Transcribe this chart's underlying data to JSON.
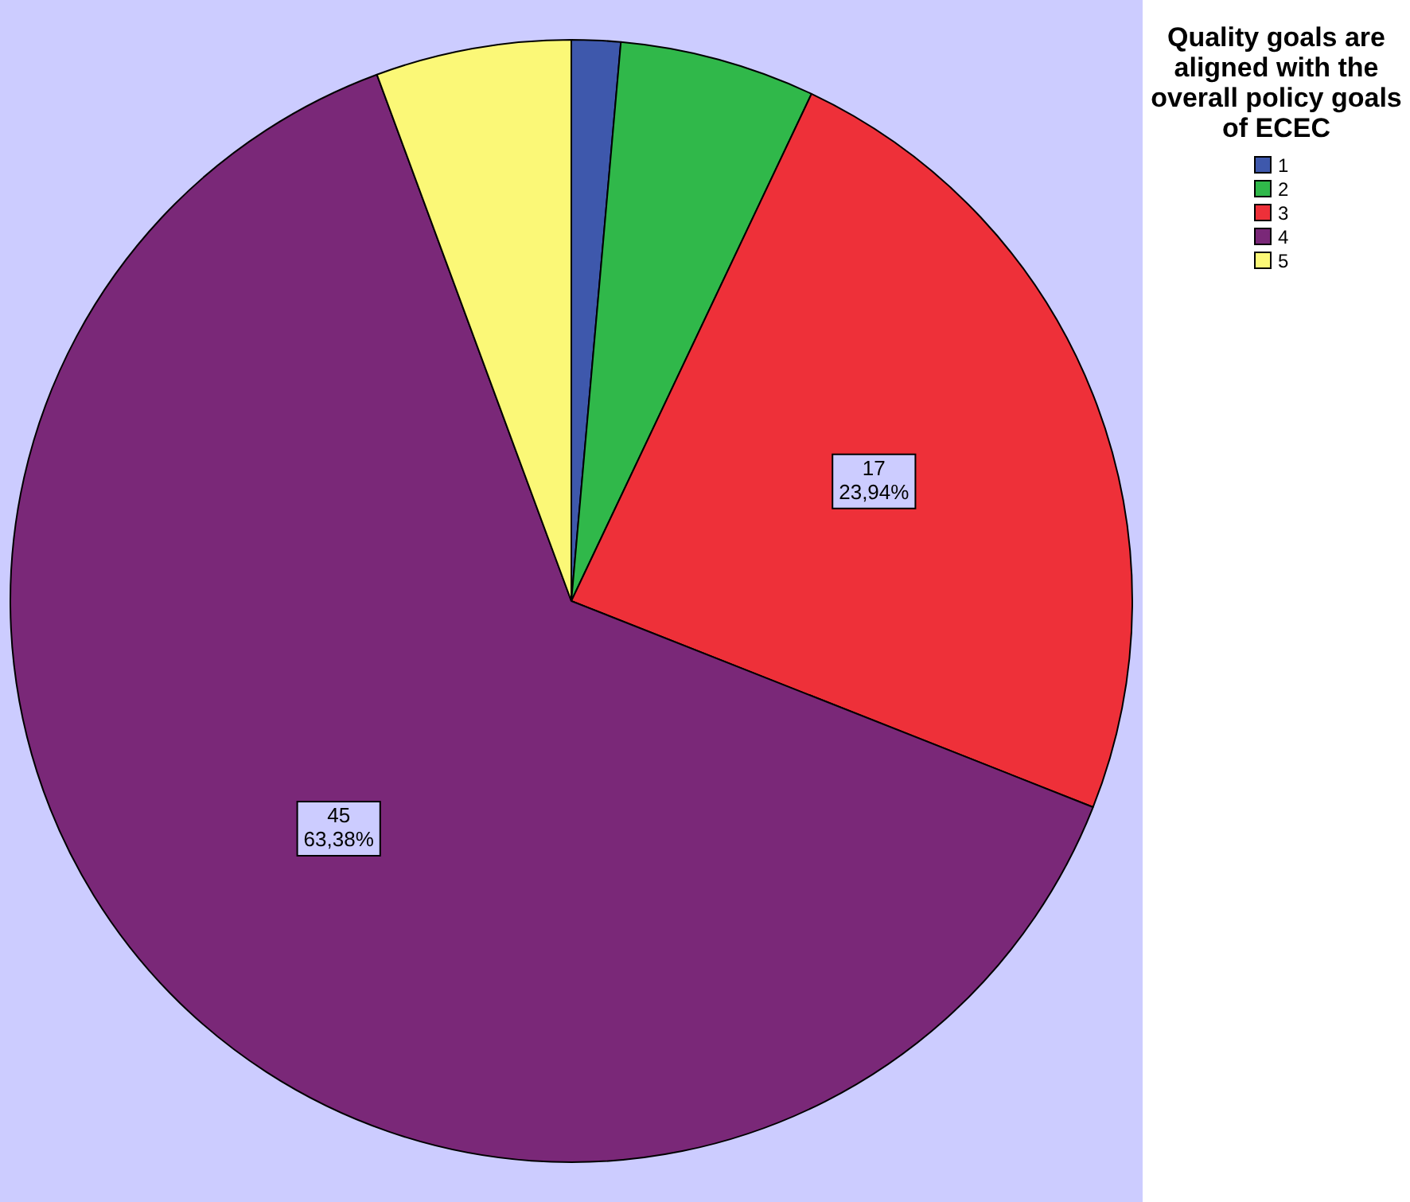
{
  "chart_data": {
    "type": "pie",
    "legend_title": "Quality goals are aligned with the overall policy goals of ECEC",
    "legend": "right",
    "categories": [
      "1",
      "2",
      "3",
      "4",
      "5"
    ],
    "values": [
      1,
      4,
      17,
      45,
      4
    ],
    "colors": [
      "#3e58ac",
      "#30b84a",
      "#ee3039",
      "#7a2878",
      "#fbf877"
    ],
    "value_labels": [
      null,
      null,
      "17\n23,94%",
      "45\n63,38%",
      null
    ]
  }
}
